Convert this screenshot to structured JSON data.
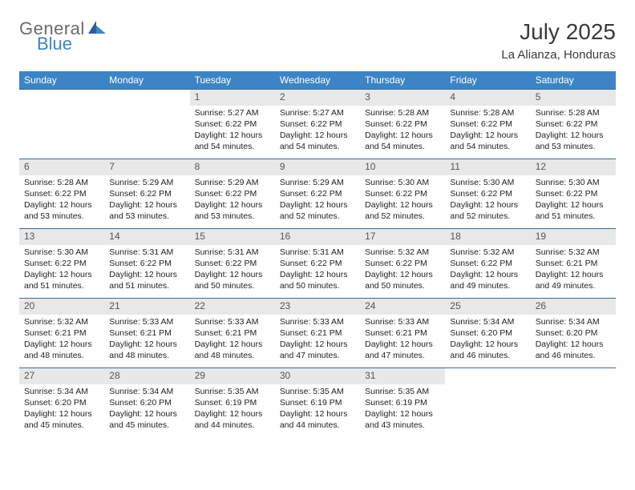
{
  "brand": {
    "general": "General",
    "blue": "Blue"
  },
  "title": "July 2025",
  "location": "La Alianza, Honduras",
  "weekday_labels": [
    "Sunday",
    "Monday",
    "Tuesday",
    "Wednesday",
    "Thursday",
    "Friday",
    "Saturday"
  ],
  "header_bg": "#3d84c6",
  "header_fg": "#ffffff",
  "daynum_bg": "#e8e8e8",
  "week_border": "#3d6a94",
  "text_fontsize": 10.5,
  "weeks": [
    [
      {
        "empty": true
      },
      {
        "empty": true
      },
      {
        "day": "1",
        "sunrise": "Sunrise: 5:27 AM",
        "sunset": "Sunset: 6:22 PM",
        "daylight1": "Daylight: 12 hours",
        "daylight2": "and 54 minutes."
      },
      {
        "day": "2",
        "sunrise": "Sunrise: 5:27 AM",
        "sunset": "Sunset: 6:22 PM",
        "daylight1": "Daylight: 12 hours",
        "daylight2": "and 54 minutes."
      },
      {
        "day": "3",
        "sunrise": "Sunrise: 5:28 AM",
        "sunset": "Sunset: 6:22 PM",
        "daylight1": "Daylight: 12 hours",
        "daylight2": "and 54 minutes."
      },
      {
        "day": "4",
        "sunrise": "Sunrise: 5:28 AM",
        "sunset": "Sunset: 6:22 PM",
        "daylight1": "Daylight: 12 hours",
        "daylight2": "and 54 minutes."
      },
      {
        "day": "5",
        "sunrise": "Sunrise: 5:28 AM",
        "sunset": "Sunset: 6:22 PM",
        "daylight1": "Daylight: 12 hours",
        "daylight2": "and 53 minutes."
      }
    ],
    [
      {
        "day": "6",
        "sunrise": "Sunrise: 5:28 AM",
        "sunset": "Sunset: 6:22 PM",
        "daylight1": "Daylight: 12 hours",
        "daylight2": "and 53 minutes."
      },
      {
        "day": "7",
        "sunrise": "Sunrise: 5:29 AM",
        "sunset": "Sunset: 6:22 PM",
        "daylight1": "Daylight: 12 hours",
        "daylight2": "and 53 minutes."
      },
      {
        "day": "8",
        "sunrise": "Sunrise: 5:29 AM",
        "sunset": "Sunset: 6:22 PM",
        "daylight1": "Daylight: 12 hours",
        "daylight2": "and 53 minutes."
      },
      {
        "day": "9",
        "sunrise": "Sunrise: 5:29 AM",
        "sunset": "Sunset: 6:22 PM",
        "daylight1": "Daylight: 12 hours",
        "daylight2": "and 52 minutes."
      },
      {
        "day": "10",
        "sunrise": "Sunrise: 5:30 AM",
        "sunset": "Sunset: 6:22 PM",
        "daylight1": "Daylight: 12 hours",
        "daylight2": "and 52 minutes."
      },
      {
        "day": "11",
        "sunrise": "Sunrise: 5:30 AM",
        "sunset": "Sunset: 6:22 PM",
        "daylight1": "Daylight: 12 hours",
        "daylight2": "and 52 minutes."
      },
      {
        "day": "12",
        "sunrise": "Sunrise: 5:30 AM",
        "sunset": "Sunset: 6:22 PM",
        "daylight1": "Daylight: 12 hours",
        "daylight2": "and 51 minutes."
      }
    ],
    [
      {
        "day": "13",
        "sunrise": "Sunrise: 5:30 AM",
        "sunset": "Sunset: 6:22 PM",
        "daylight1": "Daylight: 12 hours",
        "daylight2": "and 51 minutes."
      },
      {
        "day": "14",
        "sunrise": "Sunrise: 5:31 AM",
        "sunset": "Sunset: 6:22 PM",
        "daylight1": "Daylight: 12 hours",
        "daylight2": "and 51 minutes."
      },
      {
        "day": "15",
        "sunrise": "Sunrise: 5:31 AM",
        "sunset": "Sunset: 6:22 PM",
        "daylight1": "Daylight: 12 hours",
        "daylight2": "and 50 minutes."
      },
      {
        "day": "16",
        "sunrise": "Sunrise: 5:31 AM",
        "sunset": "Sunset: 6:22 PM",
        "daylight1": "Daylight: 12 hours",
        "daylight2": "and 50 minutes."
      },
      {
        "day": "17",
        "sunrise": "Sunrise: 5:32 AM",
        "sunset": "Sunset: 6:22 PM",
        "daylight1": "Daylight: 12 hours",
        "daylight2": "and 50 minutes."
      },
      {
        "day": "18",
        "sunrise": "Sunrise: 5:32 AM",
        "sunset": "Sunset: 6:22 PM",
        "daylight1": "Daylight: 12 hours",
        "daylight2": "and 49 minutes."
      },
      {
        "day": "19",
        "sunrise": "Sunrise: 5:32 AM",
        "sunset": "Sunset: 6:21 PM",
        "daylight1": "Daylight: 12 hours",
        "daylight2": "and 49 minutes."
      }
    ],
    [
      {
        "day": "20",
        "sunrise": "Sunrise: 5:32 AM",
        "sunset": "Sunset: 6:21 PM",
        "daylight1": "Daylight: 12 hours",
        "daylight2": "and 48 minutes."
      },
      {
        "day": "21",
        "sunrise": "Sunrise: 5:33 AM",
        "sunset": "Sunset: 6:21 PM",
        "daylight1": "Daylight: 12 hours",
        "daylight2": "and 48 minutes."
      },
      {
        "day": "22",
        "sunrise": "Sunrise: 5:33 AM",
        "sunset": "Sunset: 6:21 PM",
        "daylight1": "Daylight: 12 hours",
        "daylight2": "and 48 minutes."
      },
      {
        "day": "23",
        "sunrise": "Sunrise: 5:33 AM",
        "sunset": "Sunset: 6:21 PM",
        "daylight1": "Daylight: 12 hours",
        "daylight2": "and 47 minutes."
      },
      {
        "day": "24",
        "sunrise": "Sunrise: 5:33 AM",
        "sunset": "Sunset: 6:21 PM",
        "daylight1": "Daylight: 12 hours",
        "daylight2": "and 47 minutes."
      },
      {
        "day": "25",
        "sunrise": "Sunrise: 5:34 AM",
        "sunset": "Sunset: 6:20 PM",
        "daylight1": "Daylight: 12 hours",
        "daylight2": "and 46 minutes."
      },
      {
        "day": "26",
        "sunrise": "Sunrise: 5:34 AM",
        "sunset": "Sunset: 6:20 PM",
        "daylight1": "Daylight: 12 hours",
        "daylight2": "and 46 minutes."
      }
    ],
    [
      {
        "day": "27",
        "sunrise": "Sunrise: 5:34 AM",
        "sunset": "Sunset: 6:20 PM",
        "daylight1": "Daylight: 12 hours",
        "daylight2": "and 45 minutes."
      },
      {
        "day": "28",
        "sunrise": "Sunrise: 5:34 AM",
        "sunset": "Sunset: 6:20 PM",
        "daylight1": "Daylight: 12 hours",
        "daylight2": "and 45 minutes."
      },
      {
        "day": "29",
        "sunrise": "Sunrise: 5:35 AM",
        "sunset": "Sunset: 6:19 PM",
        "daylight1": "Daylight: 12 hours",
        "daylight2": "and 44 minutes."
      },
      {
        "day": "30",
        "sunrise": "Sunrise: 5:35 AM",
        "sunset": "Sunset: 6:19 PM",
        "daylight1": "Daylight: 12 hours",
        "daylight2": "and 44 minutes."
      },
      {
        "day": "31",
        "sunrise": "Sunrise: 5:35 AM",
        "sunset": "Sunset: 6:19 PM",
        "daylight1": "Daylight: 12 hours",
        "daylight2": "and 43 minutes."
      },
      {
        "empty": true
      },
      {
        "empty": true
      }
    ]
  ]
}
